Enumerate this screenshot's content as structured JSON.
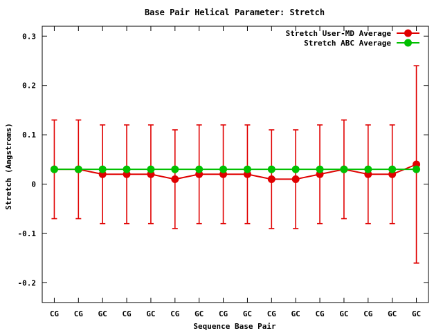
{
  "chart_data": {
    "type": "line",
    "title": "Base Pair Helical Parameter: Stretch",
    "xlabel": "Sequence Base Pair",
    "ylabel": "Stretch (Angstroms)",
    "categories": [
      "CG",
      "CG",
      "GC",
      "CG",
      "GC",
      "CG",
      "GC",
      "CG",
      "GC",
      "CG",
      "GC",
      "CG",
      "GC",
      "CG",
      "GC",
      "GC"
    ],
    "ylim": [
      -0.24,
      0.32
    ],
    "yticks": [
      -0.2,
      -0.1,
      0,
      0.1,
      0.2,
      0.3
    ],
    "ytick_labels": [
      "-0.2",
      "-0.1",
      "0",
      "0.1",
      "0.2",
      "0.3"
    ],
    "legend_position": "top-right",
    "grid": false,
    "series": [
      {
        "name": "Stretch User-MD Average",
        "color": "#e00000",
        "values": [
          0.03,
          0.03,
          0.02,
          0.02,
          0.02,
          0.01,
          0.02,
          0.02,
          0.02,
          0.01,
          0.01,
          0.02,
          0.03,
          0.02,
          0.02,
          0.04
        ],
        "error_low": [
          -0.07,
          -0.07,
          -0.08,
          -0.08,
          -0.08,
          -0.09,
          -0.08,
          -0.08,
          -0.08,
          -0.09,
          -0.09,
          -0.08,
          -0.07,
          -0.08,
          -0.08,
          -0.16
        ],
        "error_high": [
          0.13,
          0.13,
          0.12,
          0.12,
          0.12,
          0.11,
          0.12,
          0.12,
          0.12,
          0.11,
          0.11,
          0.12,
          0.13,
          0.12,
          0.12,
          0.24
        ]
      },
      {
        "name": "Stretch ABC Average",
        "color": "#00c000",
        "values": [
          0.03,
          0.03,
          0.03,
          0.03,
          0.03,
          0.03,
          0.03,
          0.03,
          0.03,
          0.03,
          0.03,
          0.03,
          0.03,
          0.03,
          0.03,
          0.03
        ]
      }
    ]
  }
}
